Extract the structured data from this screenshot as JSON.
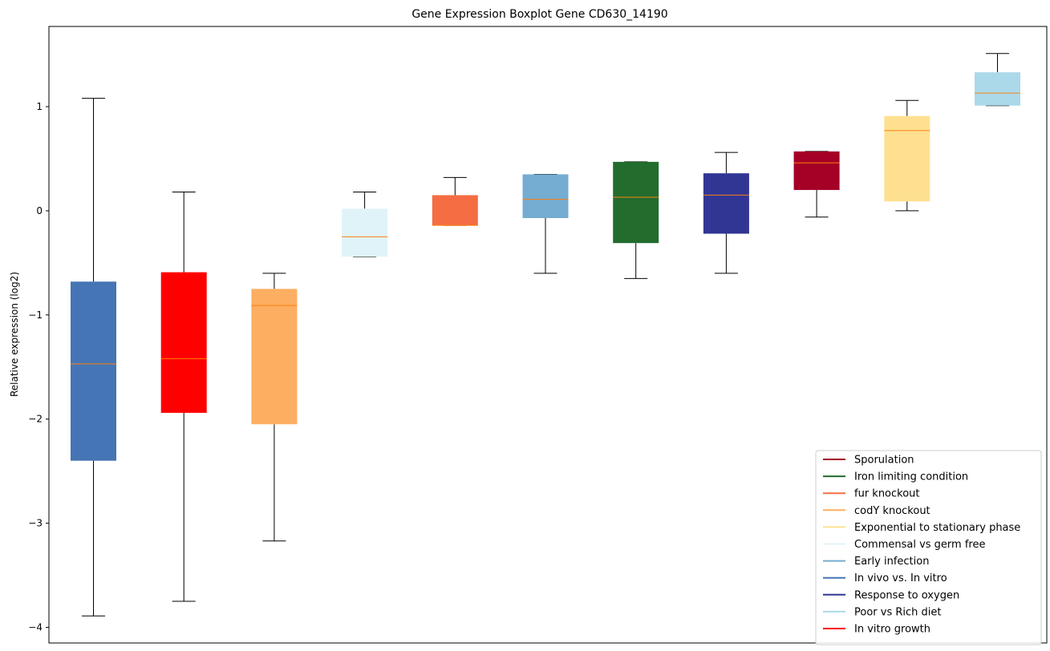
{
  "chart_data": {
    "type": "boxplot",
    "title": "Gene Expression Boxplot Gene CD630_14190",
    "xlabel": "",
    "ylabel": "Relative expression (log2)",
    "ylim": [
      -4.15,
      1.77
    ],
    "yticks": [
      {
        "value": 1,
        "label": "1"
      },
      {
        "value": 0,
        "label": "0"
      },
      {
        "value": -1,
        "label": "−1"
      },
      {
        "value": -2,
        "label": "−2"
      },
      {
        "value": -3,
        "label": "−3"
      },
      {
        "value": -4,
        "label": "−4"
      }
    ],
    "legend_position": "bottom-right",
    "median_color": "#ff7f0e",
    "series": [
      {
        "name": "In vivo vs. In vitro",
        "color": "#4575b4",
        "min": -3.89,
        "q1": -2.4,
        "median": -1.47,
        "q3": -0.68,
        "max": 1.08
      },
      {
        "name": "In vitro growth",
        "color": "#ff0000",
        "min": -3.75,
        "q1": -1.94,
        "median": -1.42,
        "q3": -0.59,
        "max": 0.18
      },
      {
        "name": "codY knockout",
        "color": "#fdae61",
        "min": -3.17,
        "q1": -2.05,
        "median": -0.91,
        "q3": -0.75,
        "max": -0.6
      },
      {
        "name": "Commensal vs germ free",
        "color": "#e0f3f8",
        "min": -0.44,
        "q1": -0.44,
        "median": -0.25,
        "q3": 0.02,
        "max": 0.18
      },
      {
        "name": "fur knockout",
        "color": "#f46d43",
        "min": -0.14,
        "q1": -0.14,
        "median": -0.14,
        "q3": 0.15,
        "max": 0.32
      },
      {
        "name": "Early infection",
        "color": "#74add1",
        "min": -0.6,
        "q1": -0.07,
        "median": 0.11,
        "q3": 0.35,
        "max": 0.35
      },
      {
        "name": "Iron limiting condition",
        "color": "#226c2e",
        "min": -0.65,
        "q1": -0.31,
        "median": 0.13,
        "q3": 0.47,
        "max": 0.47
      },
      {
        "name": "Response to oxygen",
        "color": "#313695",
        "min": -0.6,
        "q1": -0.22,
        "median": 0.15,
        "q3": 0.36,
        "max": 0.56
      },
      {
        "name": "Sporulation",
        "color": "#a50026",
        "min": -0.06,
        "q1": 0.2,
        "median": 0.46,
        "q3": 0.57,
        "max": 0.57
      },
      {
        "name": "Exponential to stationary phase",
        "color": "#fee090",
        "min": 0.0,
        "q1": 0.09,
        "median": 0.77,
        "q3": 0.91,
        "max": 1.06
      },
      {
        "name": "Poor vs Rich diet",
        "color": "#abd9e9",
        "min": 1.01,
        "q1": 1.01,
        "median": 1.13,
        "q3": 1.33,
        "max": 1.51
      }
    ],
    "legend": [
      {
        "label": "Sporulation",
        "color": "#a50026"
      },
      {
        "label": "Iron limiting condition",
        "color": "#226c2e"
      },
      {
        "label": "fur knockout",
        "color": "#f46d43"
      },
      {
        "label": "codY knockout",
        "color": "#fdae61"
      },
      {
        "label": "Exponential to stationary phase",
        "color": "#fee090"
      },
      {
        "label": "Commensal vs germ free",
        "color": "#e0f3f8"
      },
      {
        "label": "Early infection",
        "color": "#74add1"
      },
      {
        "label": "In vivo vs. In vitro",
        "color": "#4575b4"
      },
      {
        "label": "Response to oxygen",
        "color": "#313695"
      },
      {
        "label": "Poor vs Rich diet",
        "color": "#abd9e9"
      },
      {
        "label": "In vitro growth",
        "color": "#ff0000"
      }
    ]
  }
}
